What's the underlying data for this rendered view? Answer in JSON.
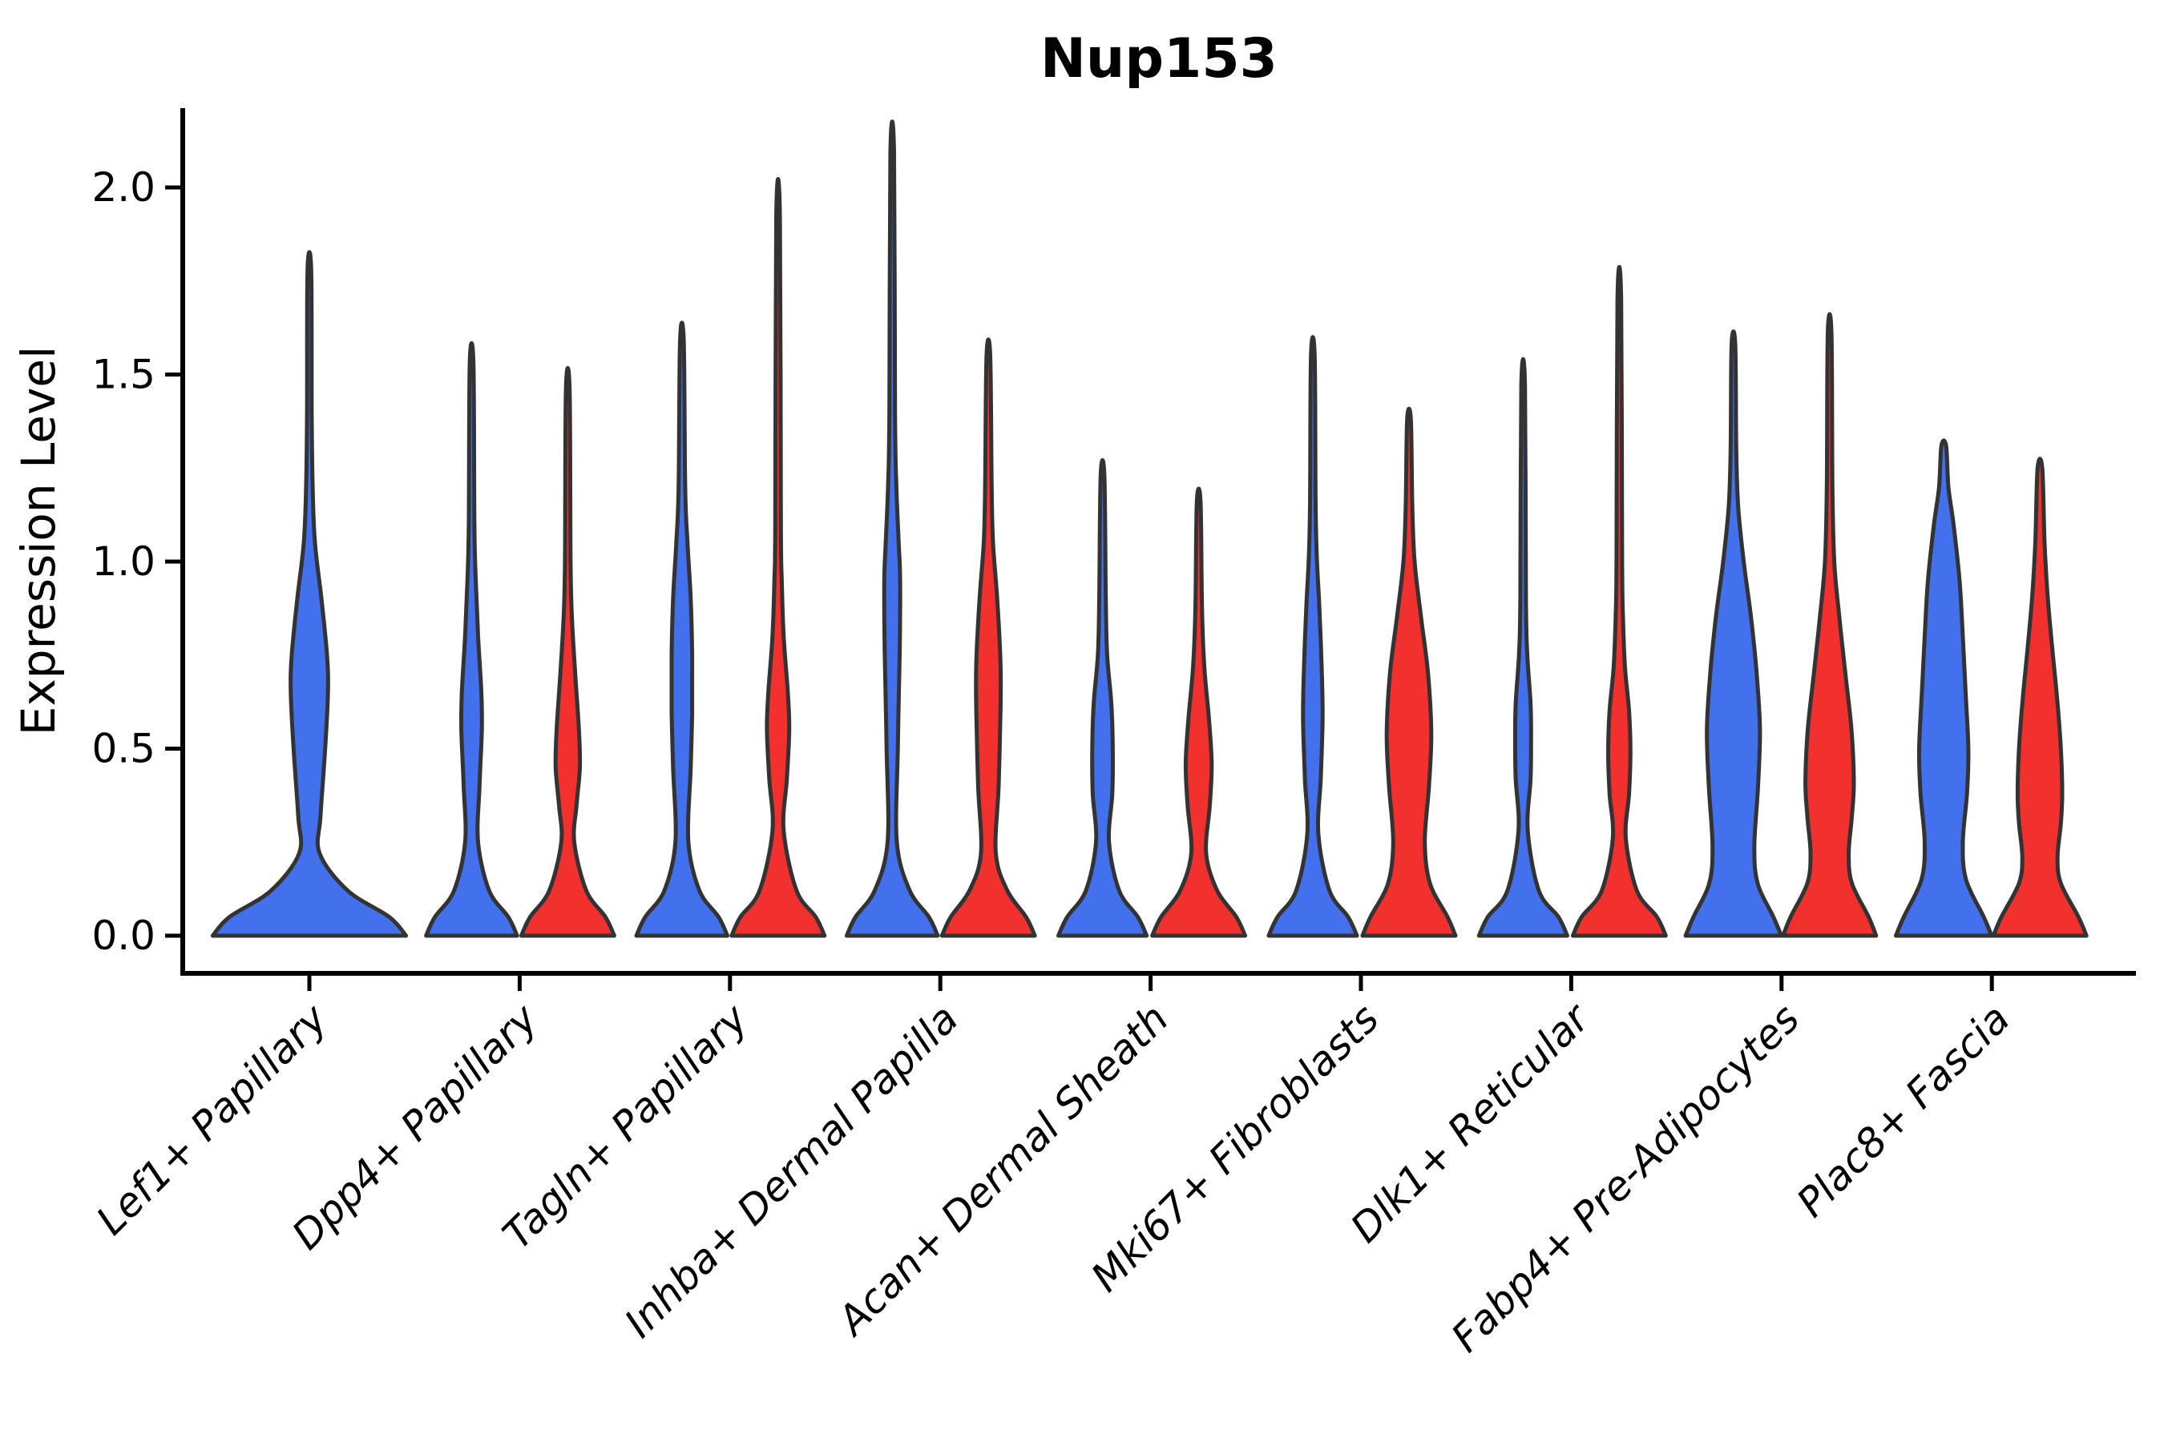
{
  "figure": {
    "background": "#ffffff"
  },
  "chart_data": {
    "type": "violin",
    "title": "Nup153",
    "ylabel": "Expression Level",
    "xlabel": "",
    "grid": false,
    "legend": "none",
    "ylim": [
      0,
      2.2
    ],
    "ytick_labels": [
      "0.0",
      "0.5",
      "1.0",
      "1.5",
      "2.0"
    ],
    "ytick_values": [
      0.0,
      0.5,
      1.0,
      1.5,
      2.0
    ],
    "categories": [
      "Lef1+ Papillary",
      "Dpp4+ Papillary",
      "Tagln+ Papillary",
      "Inhba+ Dermal Papilla",
      "Acan+ Dermal Sheath",
      "Mki67+ Fibroblasts",
      "Dlk1+ Reticular",
      "Fabp4+ Pre-Adipocytes",
      "Plac8+ Fascia"
    ],
    "colors": {
      "blue": "#4370EC",
      "red": "#F2302E",
      "edge": "#333333",
      "axis": "#000000"
    },
    "violins": [
      {
        "category_index": 0,
        "category": "Lef1+ Papillary",
        "color_key": "blue",
        "position": "center",
        "max_expression": 1.78,
        "profile": [
          [
            0,
            2.08
          ],
          [
            0.05,
            1.72
          ],
          [
            0.12,
            0.83
          ],
          [
            0.22,
            0.22
          ],
          [
            0.32,
            0.24
          ],
          [
            0.5,
            0.34
          ],
          [
            0.65,
            0.4
          ],
          [
            0.75,
            0.38
          ],
          [
            0.9,
            0.26
          ],
          [
            1.05,
            0.12
          ],
          [
            1.2,
            0.07
          ],
          [
            1.4,
            0.05
          ],
          [
            1.78,
            0.04
          ]
        ]
      },
      {
        "category_index": 1,
        "category": "Dpp4+ Papillary",
        "color_key": "blue",
        "position": "left",
        "max_expression": 1.53,
        "profile": [
          [
            0,
            0.98
          ],
          [
            0.05,
            0.79
          ],
          [
            0.12,
            0.38
          ],
          [
            0.25,
            0.14
          ],
          [
            0.4,
            0.17
          ],
          [
            0.55,
            0.22
          ],
          [
            0.65,
            0.21
          ],
          [
            0.8,
            0.14
          ],
          [
            0.95,
            0.09
          ],
          [
            1.1,
            0.06
          ],
          [
            1.53,
            0.04
          ]
        ]
      },
      {
        "category_index": 1,
        "category": "Dpp4+ Papillary",
        "color_key": "red",
        "position": "right",
        "max_expression": 1.46,
        "profile": [
          [
            0,
            1.0
          ],
          [
            0.05,
            0.81
          ],
          [
            0.12,
            0.4
          ],
          [
            0.25,
            0.14
          ],
          [
            0.35,
            0.19
          ],
          [
            0.45,
            0.26
          ],
          [
            0.55,
            0.24
          ],
          [
            0.7,
            0.16
          ],
          [
            0.85,
            0.09
          ],
          [
            1.0,
            0.06
          ],
          [
            1.46,
            0.04
          ]
        ]
      },
      {
        "category_index": 2,
        "category": "Tagln+ Papillary",
        "color_key": "blue",
        "position": "left",
        "max_expression": 1.59,
        "profile": [
          [
            0,
            0.98
          ],
          [
            0.05,
            0.79
          ],
          [
            0.12,
            0.38
          ],
          [
            0.25,
            0.14
          ],
          [
            0.45,
            0.19
          ],
          [
            0.6,
            0.22
          ],
          [
            0.75,
            0.22
          ],
          [
            0.9,
            0.19
          ],
          [
            1.05,
            0.12
          ],
          [
            1.2,
            0.07
          ],
          [
            1.59,
            0.04
          ]
        ]
      },
      {
        "category_index": 2,
        "category": "Tagln+ Papillary",
        "color_key": "red",
        "position": "right",
        "max_expression": 1.92,
        "profile": [
          [
            0,
            1.0
          ],
          [
            0.05,
            0.81
          ],
          [
            0.12,
            0.4
          ],
          [
            0.28,
            0.12
          ],
          [
            0.42,
            0.19
          ],
          [
            0.55,
            0.24
          ],
          [
            0.65,
            0.21
          ],
          [
            0.8,
            0.12
          ],
          [
            0.95,
            0.08
          ],
          [
            1.1,
            0.06
          ],
          [
            1.92,
            0.04
          ]
        ]
      },
      {
        "category_index": 3,
        "category": "Inhba+ Dermal Papilla",
        "color_key": "blue",
        "position": "left",
        "max_expression": 2.09,
        "profile": [
          [
            0,
            0.98
          ],
          [
            0.05,
            0.79
          ],
          [
            0.12,
            0.38
          ],
          [
            0.25,
            0.1
          ],
          [
            0.5,
            0.12
          ],
          [
            0.75,
            0.16
          ],
          [
            0.95,
            0.17
          ],
          [
            1.05,
            0.14
          ],
          [
            1.2,
            0.09
          ],
          [
            1.4,
            0.06
          ],
          [
            2.09,
            0.04
          ]
        ]
      },
      {
        "category_index": 3,
        "category": "Inhba+ Dermal Papilla",
        "color_key": "red",
        "position": "right",
        "max_expression": 1.55,
        "profile": [
          [
            0,
            1.0
          ],
          [
            0.05,
            0.81
          ],
          [
            0.12,
            0.41
          ],
          [
            0.22,
            0.16
          ],
          [
            0.4,
            0.22
          ],
          [
            0.6,
            0.26
          ],
          [
            0.73,
            0.26
          ],
          [
            0.9,
            0.19
          ],
          [
            1.05,
            0.1
          ],
          [
            1.2,
            0.07
          ],
          [
            1.55,
            0.04
          ]
        ]
      },
      {
        "category_index": 4,
        "category": "Acan+ Dermal Sheath",
        "color_key": "blue",
        "position": "left",
        "max_expression": 1.23,
        "profile": [
          [
            0,
            0.95
          ],
          [
            0.05,
            0.76
          ],
          [
            0.12,
            0.36
          ],
          [
            0.25,
            0.14
          ],
          [
            0.38,
            0.21
          ],
          [
            0.5,
            0.22
          ],
          [
            0.62,
            0.19
          ],
          [
            0.75,
            0.1
          ],
          [
            0.9,
            0.07
          ],
          [
            1.23,
            0.04
          ]
        ]
      },
      {
        "category_index": 4,
        "category": "Acan+ Dermal Sheath",
        "color_key": "red",
        "position": "right",
        "max_expression": 1.16,
        "profile": [
          [
            0,
            1.0
          ],
          [
            0.05,
            0.81
          ],
          [
            0.12,
            0.4
          ],
          [
            0.22,
            0.16
          ],
          [
            0.35,
            0.24
          ],
          [
            0.46,
            0.28
          ],
          [
            0.58,
            0.22
          ],
          [
            0.72,
            0.12
          ],
          [
            0.88,
            0.07
          ],
          [
            1.16,
            0.04
          ]
        ]
      },
      {
        "category_index": 5,
        "category": "Mki67+ Fibroblasts",
        "color_key": "blue",
        "position": "left",
        "max_expression": 1.55,
        "profile": [
          [
            0,
            0.95
          ],
          [
            0.05,
            0.76
          ],
          [
            0.12,
            0.36
          ],
          [
            0.27,
            0.12
          ],
          [
            0.42,
            0.17
          ],
          [
            0.58,
            0.21
          ],
          [
            0.72,
            0.19
          ],
          [
            0.88,
            0.14
          ],
          [
            1.0,
            0.09
          ],
          [
            1.15,
            0.06
          ],
          [
            1.55,
            0.04
          ]
        ]
      },
      {
        "category_index": 5,
        "category": "Mki67+ Fibroblasts",
        "color_key": "red",
        "position": "right",
        "max_expression": 1.38,
        "profile": [
          [
            0,
            1.0
          ],
          [
            0.05,
            0.83
          ],
          [
            0.14,
            0.45
          ],
          [
            0.25,
            0.34
          ],
          [
            0.4,
            0.43
          ],
          [
            0.54,
            0.48
          ],
          [
            0.7,
            0.41
          ],
          [
            0.85,
            0.26
          ],
          [
            1.0,
            0.12
          ],
          [
            1.15,
            0.07
          ],
          [
            1.38,
            0.04
          ]
        ]
      },
      {
        "category_index": 6,
        "category": "Dlk1+ Reticular",
        "color_key": "blue",
        "position": "left",
        "max_expression": 1.47,
        "profile": [
          [
            0,
            0.95
          ],
          [
            0.05,
            0.76
          ],
          [
            0.12,
            0.34
          ],
          [
            0.28,
            0.1
          ],
          [
            0.42,
            0.16
          ],
          [
            0.52,
            0.17
          ],
          [
            0.62,
            0.16
          ],
          [
            0.75,
            0.09
          ],
          [
            0.9,
            0.06
          ],
          [
            1.47,
            0.04
          ]
        ]
      },
      {
        "category_index": 6,
        "category": "Dlk1+ Reticular",
        "color_key": "red",
        "position": "right",
        "max_expression": 1.7,
        "profile": [
          [
            0,
            1.0
          ],
          [
            0.05,
            0.81
          ],
          [
            0.12,
            0.38
          ],
          [
            0.26,
            0.14
          ],
          [
            0.38,
            0.21
          ],
          [
            0.49,
            0.24
          ],
          [
            0.6,
            0.21
          ],
          [
            0.72,
            0.12
          ],
          [
            0.85,
            0.08
          ],
          [
            1.0,
            0.06
          ],
          [
            1.7,
            0.04
          ]
        ]
      },
      {
        "category_index": 7,
        "category": "Fabp4+ Pre-Adipocytes",
        "color_key": "blue",
        "position": "left",
        "max_expression": 1.58,
        "profile": [
          [
            0,
            1.03
          ],
          [
            0.05,
            0.86
          ],
          [
            0.14,
            0.52
          ],
          [
            0.24,
            0.45
          ],
          [
            0.4,
            0.53
          ],
          [
            0.55,
            0.57
          ],
          [
            0.7,
            0.5
          ],
          [
            0.85,
            0.38
          ],
          [
            1.0,
            0.22
          ],
          [
            1.15,
            0.1
          ],
          [
            1.3,
            0.06
          ],
          [
            1.58,
            0.04
          ]
        ]
      },
      {
        "category_index": 7,
        "category": "Fabp4+ Pre-Adipocytes",
        "color_key": "red",
        "position": "right",
        "max_expression": 1.61,
        "profile": [
          [
            0,
            1.0
          ],
          [
            0.05,
            0.84
          ],
          [
            0.14,
            0.48
          ],
          [
            0.22,
            0.41
          ],
          [
            0.32,
            0.48
          ],
          [
            0.41,
            0.52
          ],
          [
            0.55,
            0.47
          ],
          [
            0.7,
            0.34
          ],
          [
            0.85,
            0.21
          ],
          [
            1.0,
            0.1
          ],
          [
            1.2,
            0.06
          ],
          [
            1.61,
            0.04
          ]
        ]
      },
      {
        "category_index": 8,
        "category": "Plac8+ Fascia",
        "color_key": "blue",
        "position": "left",
        "max_expression": 1.31,
        "profile": [
          [
            0,
            1.03
          ],
          [
            0.05,
            0.86
          ],
          [
            0.15,
            0.48
          ],
          [
            0.25,
            0.41
          ],
          [
            0.38,
            0.5
          ],
          [
            0.5,
            0.53
          ],
          [
            0.65,
            0.47
          ],
          [
            0.8,
            0.41
          ],
          [
            0.95,
            0.34
          ],
          [
            1.1,
            0.21
          ],
          [
            1.2,
            0.1
          ],
          [
            1.31,
            0.05
          ]
        ]
      },
      {
        "category_index": 8,
        "category": "Plac8+ Fascia",
        "color_key": "red",
        "position": "right",
        "max_expression": 1.25,
        "profile": [
          [
            0,
            1.0
          ],
          [
            0.05,
            0.83
          ],
          [
            0.14,
            0.45
          ],
          [
            0.21,
            0.38
          ],
          [
            0.3,
            0.45
          ],
          [
            0.38,
            0.48
          ],
          [
            0.5,
            0.45
          ],
          [
            0.62,
            0.38
          ],
          [
            0.75,
            0.28
          ],
          [
            0.9,
            0.17
          ],
          [
            1.05,
            0.1
          ],
          [
            1.25,
            0.05
          ]
        ]
      }
    ]
  }
}
